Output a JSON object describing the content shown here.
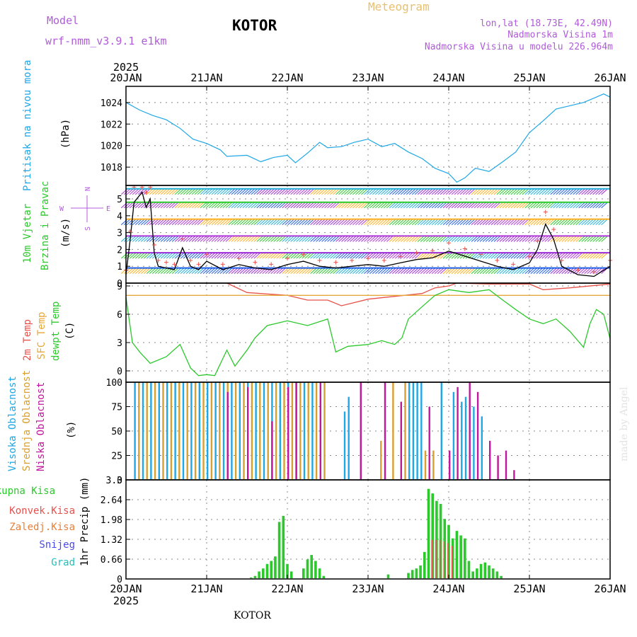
{
  "header": {
    "model_label": "Model",
    "model_name": "wrf-nmm_v3.9.1 e1km",
    "station": "KOTOR",
    "title": "Meteogram",
    "coords": "lon,lat (18.73E, 42.49N)",
    "elevation": "Nadmorska Visina 1m",
    "model_elevation": "Nadmorska Visina u modelu 226.964m",
    "year_top": "2025",
    "year_bottom": "2025",
    "footer_station": "KOTOR",
    "credit": "made by Angel"
  },
  "x_axis": {
    "dates": [
      "20JAN",
      "21JAN",
      "22JAN",
      "23JAN",
      "24JAN",
      "25JAN",
      "26JAN"
    ],
    "range_days": [
      0,
      6
    ]
  },
  "colors": {
    "pressure": "#1fa7e6",
    "temp2m": "#e8504a",
    "sfc_temp": "#e6a83a",
    "dewpt": "#2cc92c",
    "cloud_high": "#1fa7e6",
    "cloud_mid": "#d8a030",
    "cloud_low": "#c0189c",
    "precip": "#2cc92c",
    "precip_conv": "#e8504a",
    "snow": "#4a4ae8",
    "grad": "#20c0c0",
    "header_purple": "#b05cd8",
    "header_gold": "#e8c070",
    "wind_black": "#000000",
    "wind_red": "#e8504a"
  },
  "panels": {
    "pressure": {
      "label": "Pritisak na nivou mora",
      "unit": "(hPa)",
      "ticks": [
        "1018",
        "1020",
        "1022",
        "1024"
      ]
    },
    "wind": {
      "label1": "10m Vjetar",
      "label2": "Brzina i Pravac",
      "unit": "(m/s)",
      "compass_n": "N",
      "compass_w": "W",
      "compass_e": "E",
      "compass_s": "S",
      "ticks": [
        "0",
        "1",
        "2",
        "3",
        "4",
        "5"
      ]
    },
    "temp": {
      "label1": "2m Temp",
      "label2": "SFC Temp",
      "label3": "dewpt Temp",
      "unit": "(C)",
      "ticks": [
        "0",
        "3",
        "6",
        "9"
      ]
    },
    "cloud": {
      "label1": "Visoka Oblacnost",
      "label2": "Srednja Oblacnost",
      "label3": "Niska Oblacnost",
      "unit": "(%)",
      "ticks": [
        "0",
        "25",
        "50",
        "75",
        "100"
      ]
    },
    "precip": {
      "legend": [
        "Ukupna Kisa",
        "Konvek.Kisa",
        "Zaledj.Kisa",
        "Snijeg",
        "Grad"
      ],
      "unit": "1hr Precip (mm)",
      "ticks": [
        "0",
        "0.66",
        "1.32",
        "1.98",
        "2.64",
        "3.3"
      ]
    }
  },
  "chart_data": [
    {
      "type": "line",
      "name": "pressure",
      "ylim": [
        1016.3,
        1025.5
      ],
      "x": [
        0,
        0.17,
        0.33,
        0.5,
        0.67,
        0.83,
        1.0,
        1.17,
        1.25,
        1.5,
        1.67,
        1.83,
        2.0,
        2.1,
        2.25,
        2.4,
        2.5,
        2.67,
        2.83,
        3.0,
        3.17,
        3.33,
        3.5,
        3.67,
        3.83,
        4.0,
        4.1,
        4.2,
        4.33,
        4.5,
        4.67,
        4.83,
        5.0,
        5.17,
        5.33,
        5.5,
        5.67,
        5.83,
        5.92,
        6.0
      ],
      "values": [
        1024.0,
        1023.3,
        1022.8,
        1022.4,
        1021.6,
        1020.6,
        1020.2,
        1019.6,
        1019.0,
        1019.1,
        1018.5,
        1018.9,
        1019.1,
        1018.4,
        1019.3,
        1020.3,
        1019.8,
        1019.9,
        1020.3,
        1020.6,
        1019.9,
        1020.2,
        1019.4,
        1018.8,
        1017.9,
        1017.4,
        1016.6,
        1017.0,
        1017.9,
        1017.6,
        1018.5,
        1019.4,
        1021.2,
        1022.3,
        1023.4,
        1023.7,
        1024.0,
        1024.5,
        1024.8,
        1024.5
      ]
    },
    {
      "type": "line",
      "name": "wind_speed",
      "ylim": [
        0,
        5.8
      ],
      "x": [
        0,
        0.05,
        0.1,
        0.2,
        0.25,
        0.3,
        0.35,
        0.4,
        0.5,
        0.6,
        0.7,
        0.8,
        0.9,
        1.0,
        1.2,
        1.4,
        1.6,
        1.8,
        2.0,
        2.2,
        2.4,
        2.6,
        2.8,
        3.0,
        3.2,
        3.4,
        3.6,
        3.8,
        4.0,
        4.2,
        4.4,
        4.6,
        4.8,
        5.0,
        5.1,
        5.2,
        5.3,
        5.4,
        5.6,
        5.8,
        6.0
      ],
      "values": [
        0.5,
        2.5,
        4.8,
        5.4,
        4.5,
        5.0,
        1.8,
        1.0,
        0.9,
        0.8,
        2.1,
        1.0,
        0.8,
        1.3,
        0.8,
        1.1,
        0.9,
        0.8,
        1.1,
        1.3,
        1.0,
        0.9,
        1.0,
        1.1,
        1.0,
        1.2,
        1.4,
        1.5,
        1.9,
        1.6,
        1.3,
        1.0,
        0.8,
        1.2,
        2.0,
        3.5,
        2.6,
        1.0,
        0.5,
        0.4,
        1.0
      ]
    },
    {
      "type": "line",
      "name": "temperature",
      "ylim": [
        -1.2,
        9.3
      ],
      "series": [
        {
          "name": "2m Temp",
          "x": [
            1.25,
            1.5,
            2.0,
            2.25,
            2.5,
            2.67,
            3.0,
            3.33,
            3.67,
            3.83,
            4.0,
            4.1,
            4.5,
            5.0,
            5.17,
            5.5,
            6.0
          ],
          "values": [
            9.3,
            8.3,
            8.0,
            7.5,
            7.5,
            6.9,
            7.6,
            7.9,
            8.2,
            8.8,
            9.0,
            9.3,
            9.2,
            9.2,
            8.6,
            8.8,
            9.2
          ]
        },
        {
          "name": "SFC Temp",
          "x": [
            0,
            6.0
          ],
          "values": [
            8.0,
            8.0
          ]
        },
        {
          "name": "dewpt Temp",
          "x": [
            0,
            0.08,
            0.17,
            0.3,
            0.5,
            0.67,
            0.8,
            0.9,
            1.0,
            1.1,
            1.25,
            1.35,
            1.5,
            1.6,
            1.75,
            2.0,
            2.25,
            2.5,
            2.6,
            2.75,
            3.0,
            3.17,
            3.33,
            3.42,
            3.5,
            3.67,
            3.83,
            4.0,
            4.25,
            4.5,
            4.67,
            4.83,
            5.0,
            5.17,
            5.33,
            5.5,
            5.67,
            5.75,
            5.83,
            5.92,
            6.0
          ],
          "values": [
            7.8,
            3.0,
            2.0,
            0.8,
            1.5,
            2.8,
            0.3,
            -0.5,
            -0.4,
            -0.5,
            2.2,
            0.5,
            2.2,
            3.5,
            4.8,
            5.3,
            4.8,
            5.5,
            2.0,
            2.6,
            2.8,
            3.2,
            2.8,
            3.5,
            5.5,
            6.8,
            8.0,
            8.6,
            8.3,
            8.6,
            7.5,
            6.5,
            5.5,
            5.0,
            5.5,
            4.2,
            2.5,
            5.0,
            6.5,
            6.0,
            3.4
          ]
        }
      ]
    },
    {
      "type": "bar",
      "name": "cloudiness",
      "ylim": [
        0,
        100
      ],
      "series": [
        {
          "name": "Visoka Oblacnost",
          "x": [
            0.1,
            0.2,
            0.3,
            0.4,
            0.5,
            0.6,
            0.7,
            0.8,
            0.9,
            1.0,
            1.1,
            1.2,
            1.3,
            1.4,
            1.5,
            1.6,
            1.7,
            1.8,
            1.9,
            2.0,
            2.1,
            2.2,
            2.3,
            2.7,
            2.75,
            3.5,
            3.55,
            3.6,
            3.65,
            3.9,
            4.05,
            4.15,
            4.2,
            4.3,
            4.4
          ],
          "values": [
            100,
            100,
            100,
            100,
            100,
            100,
            100,
            100,
            100,
            100,
            100,
            100,
            100,
            100,
            100,
            100,
            100,
            100,
            100,
            100,
            100,
            100,
            100,
            70,
            85,
            100,
            100,
            100,
            100,
            100,
            90,
            80,
            85,
            75,
            65
          ]
        },
        {
          "name": "Srednja Oblacnost",
          "x": [
            0.15,
            0.25,
            0.35,
            0.45,
            0.55,
            0.65,
            0.75,
            0.85,
            0.95,
            1.05,
            1.15,
            1.25,
            1.35,
            1.45,
            1.55,
            1.65,
            1.75,
            1.85,
            1.95,
            2.05,
            2.15,
            2.25,
            2.35,
            2.45,
            3.15,
            3.3,
            3.45,
            3.7,
            3.8
          ],
          "values": [
            100,
            100,
            100,
            100,
            100,
            100,
            100,
            100,
            100,
            100,
            100,
            100,
            100,
            100,
            100,
            100,
            100,
            100,
            100,
            100,
            100,
            100,
            100,
            100,
            40,
            100,
            100,
            30,
            30
          ]
        },
        {
          "name": "Niska Oblacnost",
          "x": [
            1.25,
            1.5,
            1.8,
            2.0,
            2.1,
            2.4,
            2.9,
            3.2,
            3.4,
            3.75,
            4.0,
            4.1,
            4.25,
            4.35,
            4.5,
            4.6,
            4.7,
            4.8
          ],
          "values": [
            90,
            95,
            60,
            95,
            100,
            100,
            100,
            100,
            80,
            75,
            30,
            95,
            100,
            90,
            40,
            25,
            30,
            10
          ]
        }
      ]
    },
    {
      "type": "bar",
      "name": "precipitation",
      "ylim": [
        0,
        3.3
      ],
      "series": [
        {
          "name": "Ukupna Kisa",
          "x": [
            1.55,
            1.6,
            1.65,
            1.7,
            1.75,
            1.8,
            1.85,
            1.9,
            1.95,
            2.0,
            2.05,
            2.2,
            2.25,
            2.3,
            2.35,
            2.4,
            2.45,
            3.25,
            3.5,
            3.55,
            3.6,
            3.65,
            3.7,
            3.75,
            3.8,
            3.85,
            3.9,
            3.95,
            4.0,
            4.05,
            4.1,
            4.15,
            4.2,
            4.25,
            4.3,
            4.35,
            4.4,
            4.45,
            4.5,
            4.55,
            4.6,
            4.65
          ],
          "values": [
            0.05,
            0.1,
            0.25,
            0.35,
            0.5,
            0.6,
            0.75,
            1.9,
            2.1,
            0.5,
            0.25,
            0.35,
            0.65,
            0.8,
            0.6,
            0.35,
            0.1,
            0.15,
            0.2,
            0.3,
            0.35,
            0.45,
            0.9,
            3.0,
            2.85,
            2.6,
            2.5,
            2.0,
            1.8,
            1.35,
            1.6,
            1.45,
            1.35,
            0.6,
            0.25,
            0.35,
            0.5,
            0.55,
            0.45,
            0.35,
            0.25,
            0.1
          ]
        },
        {
          "name": "Konvek.Kisa",
          "x": [
            3.8,
            3.85,
            3.9,
            3.95,
            4.0,
            4.05
          ],
          "values": [
            1.3,
            1.3,
            1.3,
            1.25,
            1.2,
            1.1
          ]
        }
      ]
    }
  ]
}
